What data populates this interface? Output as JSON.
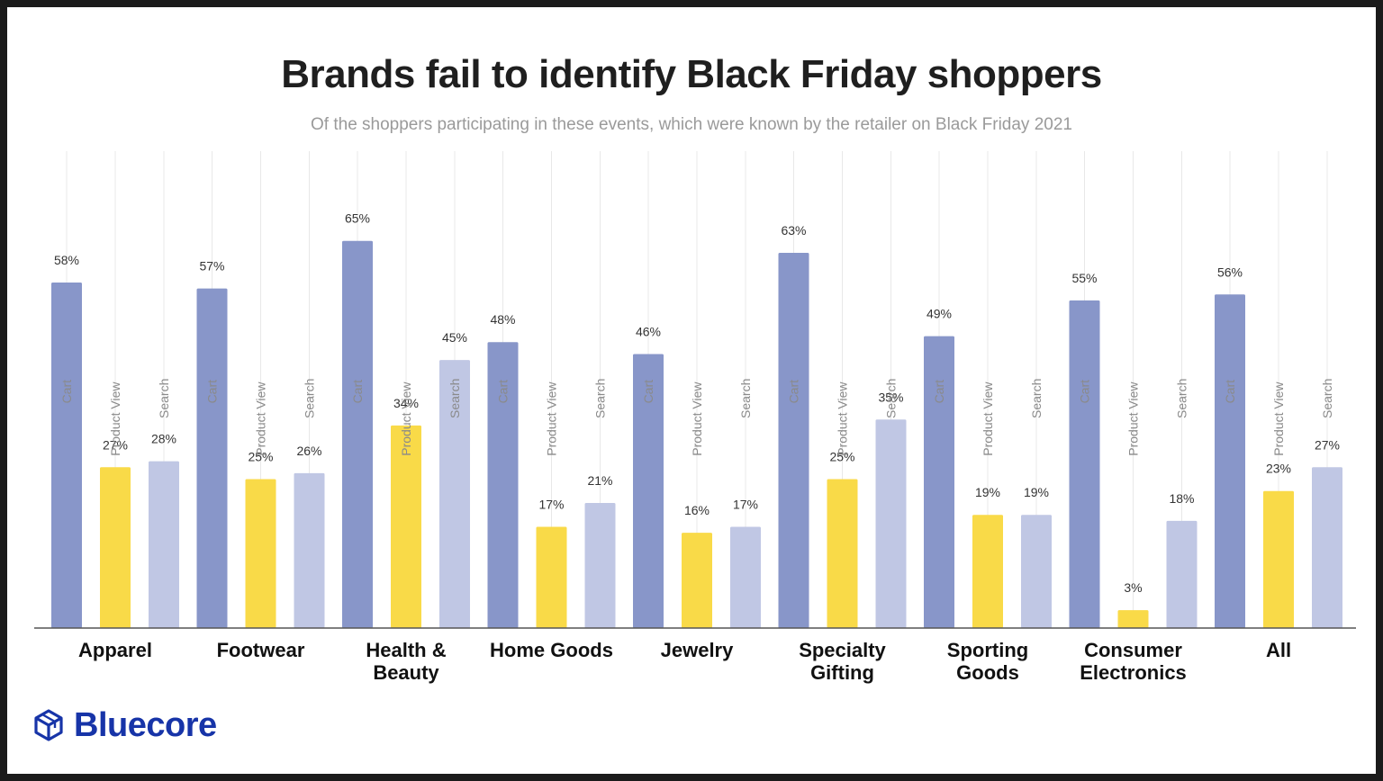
{
  "brand": {
    "name": "Bluecore",
    "color": "#1734a8"
  },
  "chart_data": {
    "type": "bar",
    "title": "Brands fail to identify Black Friday shoppers",
    "subtitle": "Of the shoppers participating in these events, which were known by the retailer on Black Friday 2021",
    "xlabel": "",
    "ylabel": "",
    "ylim": [
      0,
      70
    ],
    "grid": true,
    "categories": [
      [
        "Apparel"
      ],
      [
        "Footwear"
      ],
      [
        "Health &",
        "Beauty"
      ],
      [
        "Home Goods"
      ],
      [
        "Jewelry"
      ],
      [
        "Specialty",
        "Gifting"
      ],
      [
        "Sporting",
        "Goods"
      ],
      [
        "Consumer",
        "Electronics"
      ],
      [
        "All"
      ]
    ],
    "series": [
      {
        "name": "Cart",
        "color": "#8896c9",
        "values": [
          58,
          57,
          65,
          48,
          46,
          63,
          49,
          55,
          56
        ]
      },
      {
        "name": "Product View",
        "color": "#f9da48",
        "values": [
          27,
          25,
          34,
          17,
          16,
          25,
          19,
          3,
          23
        ]
      },
      {
        "name": "Search",
        "color": "#c0c7e4",
        "values": [
          28,
          26,
          45,
          21,
          17,
          35,
          19,
          18,
          27
        ]
      }
    ],
    "value_suffix": "%"
  }
}
